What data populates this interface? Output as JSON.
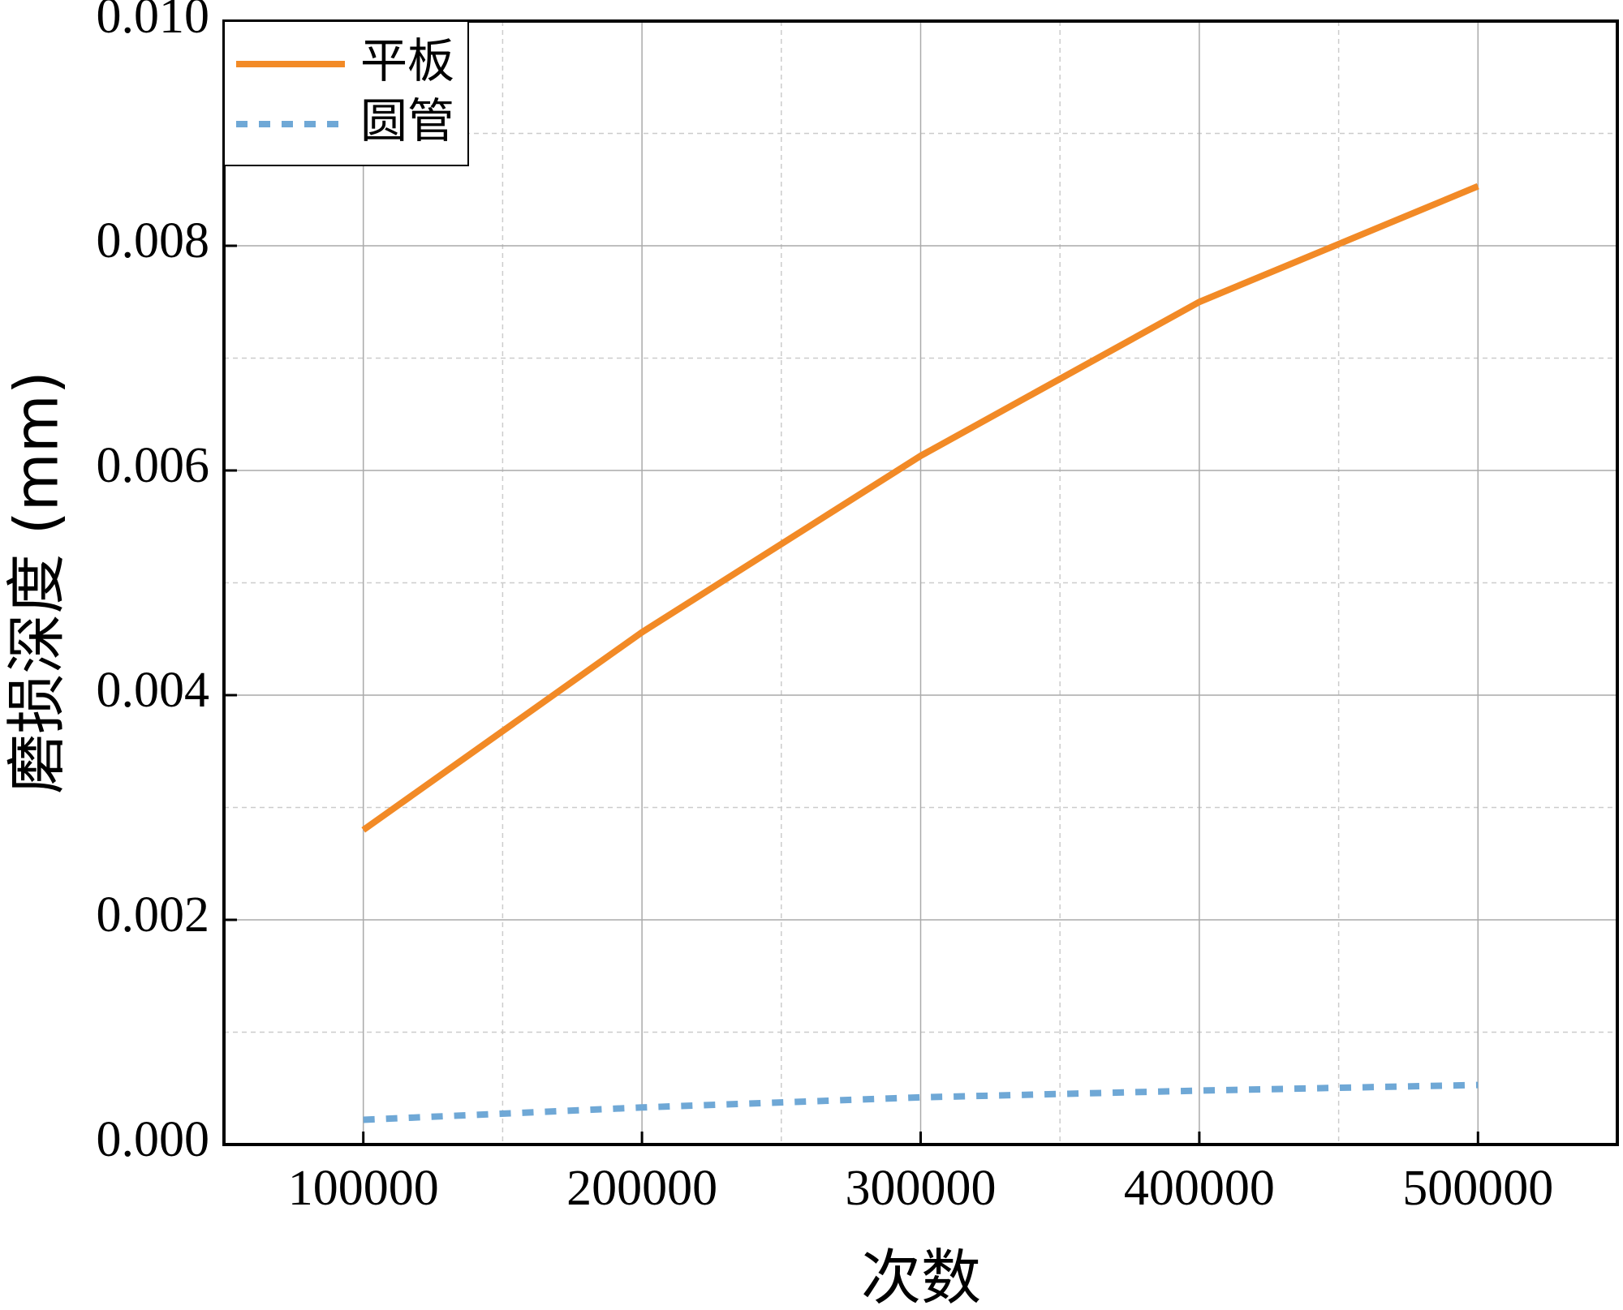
{
  "chart_data": {
    "type": "line",
    "x_label": "次数",
    "y_label": "磨损深度 (mm)",
    "x": [
      100000,
      200000,
      300000,
      400000,
      500000
    ],
    "series": [
      {
        "name": "平板",
        "color": "#f28a26",
        "values": [
          0.0028,
          0.00456,
          0.00613,
          0.0075,
          0.00853
        ]
      },
      {
        "name": "圆管",
        "color": "#6fa8d6",
        "values": [
          0.00022,
          0.00033,
          0.00042,
          0.00048,
          0.00053
        ]
      }
    ],
    "xlim": [
      50000,
      550000
    ],
    "xticks": [
      100000,
      200000,
      300000,
      400000,
      500000
    ],
    "ylim": [
      0,
      0.01
    ],
    "yticks": [
      {
        "value": 0,
        "label": "0.000"
      },
      {
        "value": 0.002,
        "label": "0.002"
      },
      {
        "value": 0.004,
        "label": "0.004"
      },
      {
        "value": 0.006,
        "label": "0.006"
      },
      {
        "value": 0.008,
        "label": "0.008"
      },
      {
        "value": 0.01,
        "label": "0.010"
      }
    ],
    "grid": true,
    "legend": "upper left"
  }
}
